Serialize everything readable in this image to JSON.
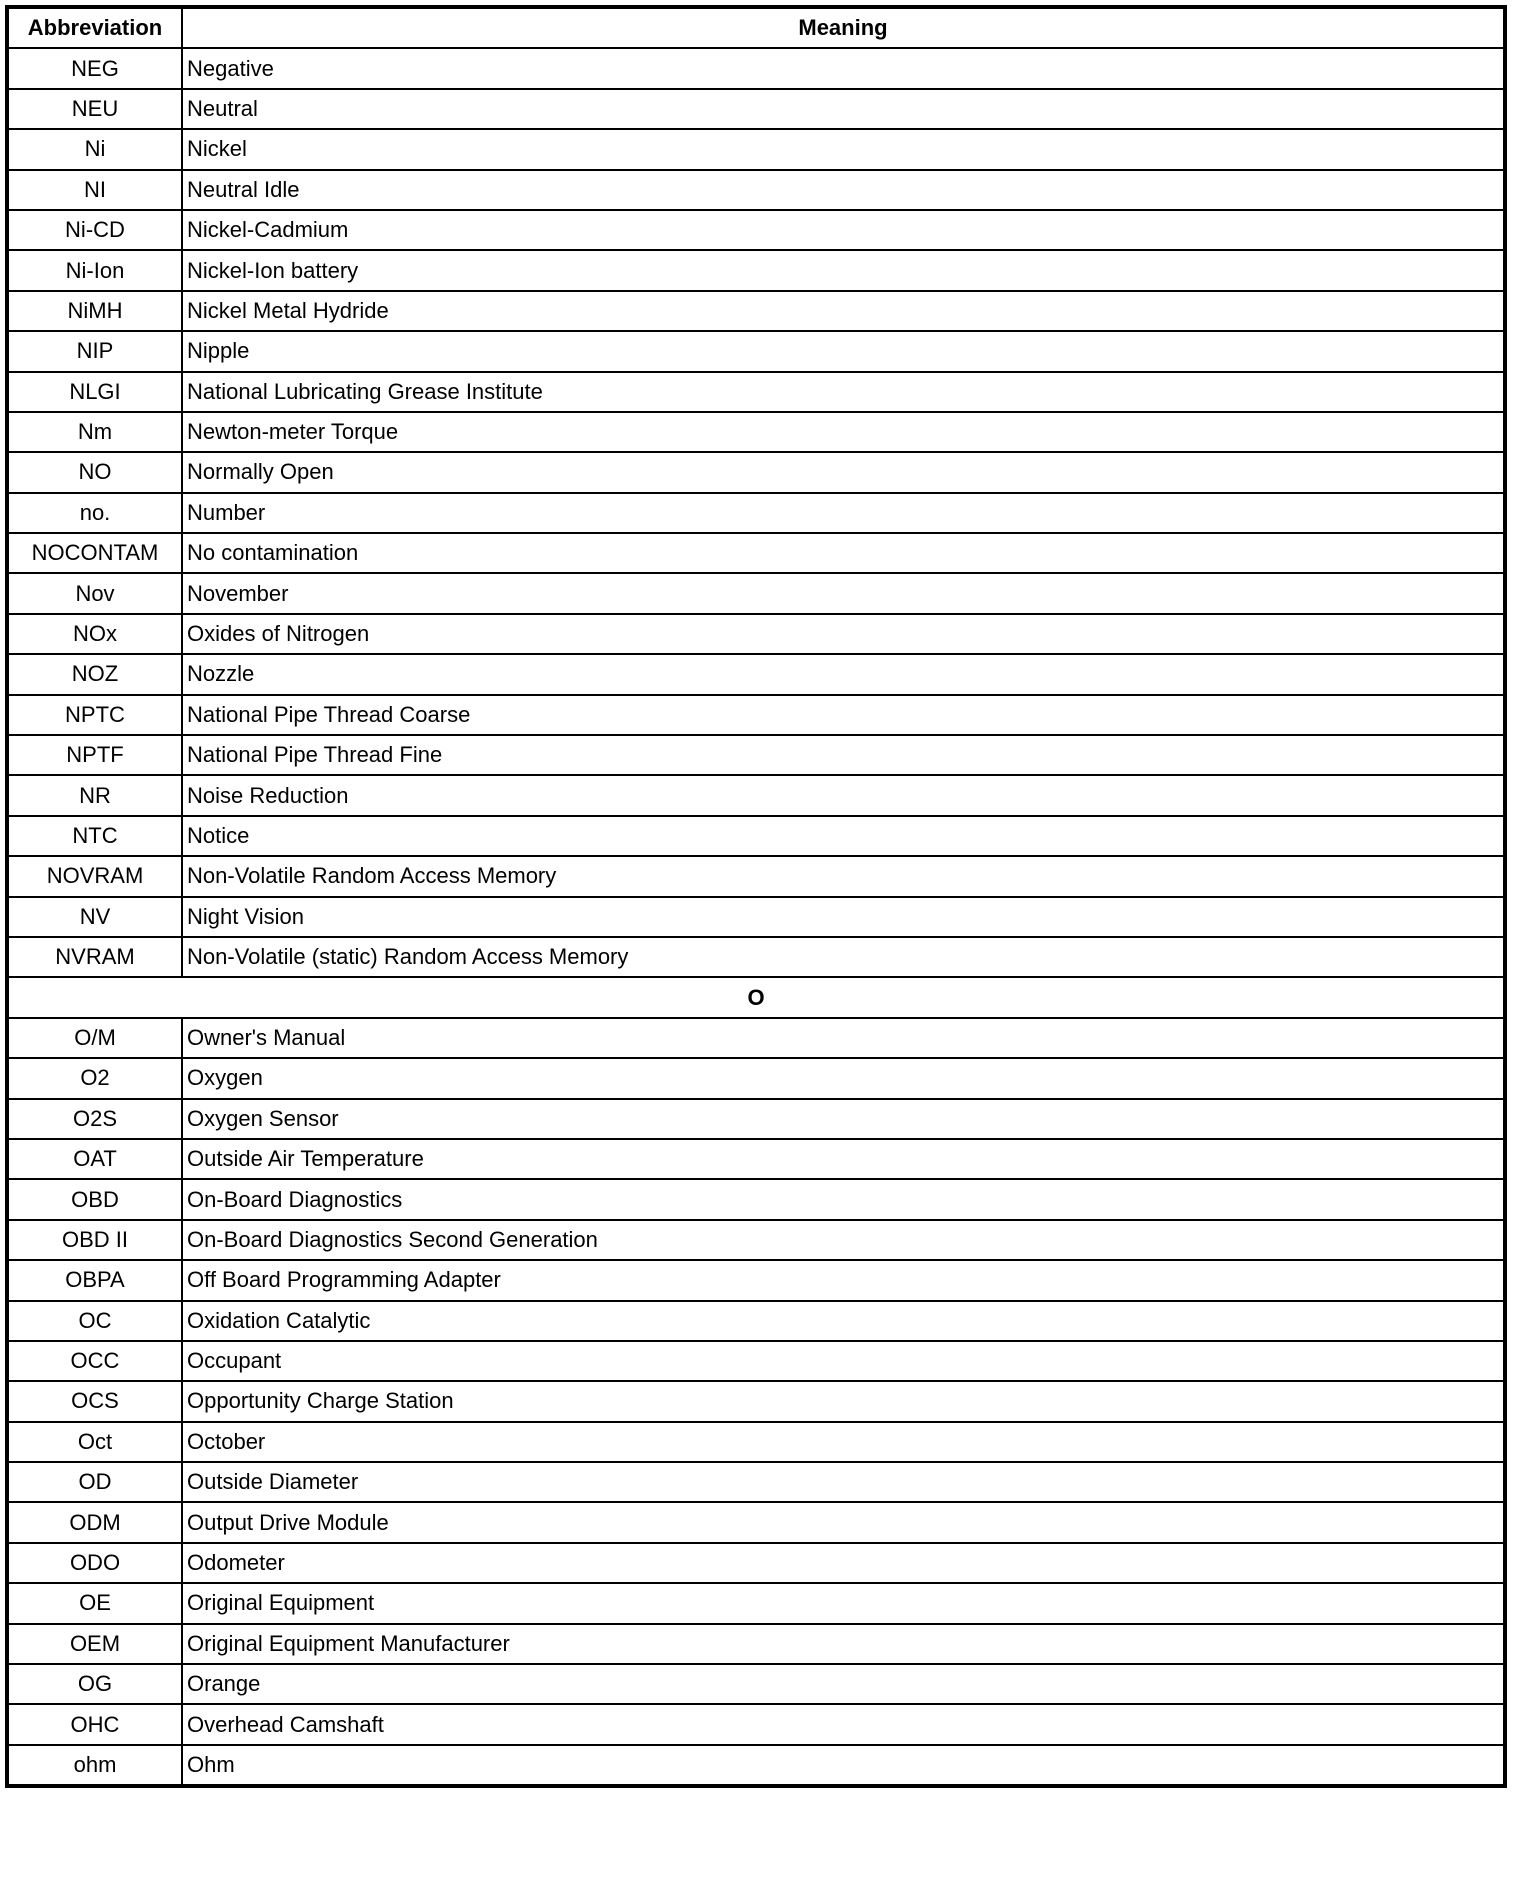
{
  "headers": {
    "abbreviation": "Abbreviation",
    "meaning": "Meaning"
  },
  "sections": [
    {
      "title": "",
      "rows": [
        [
          "NEG",
          "Negative"
        ],
        [
          "NEU",
          "Neutral"
        ],
        [
          "Ni",
          "Nickel"
        ],
        [
          "NI",
          "Neutral Idle"
        ],
        [
          "Ni-CD",
          "Nickel-Cadmium"
        ],
        [
          "Ni-Ion",
          "Nickel-Ion battery"
        ],
        [
          "NiMH",
          "Nickel Metal Hydride"
        ],
        [
          "NIP",
          "Nipple"
        ],
        [
          "NLGI",
          "National Lubricating Grease Institute"
        ],
        [
          "Nm",
          "Newton-meter Torque"
        ],
        [
          "NO",
          "Normally Open"
        ],
        [
          "no.",
          "Number"
        ],
        [
          "NOCONTAM",
          "No contamination"
        ],
        [
          "Nov",
          "November"
        ],
        [
          "NOx",
          "Oxides of Nitrogen"
        ],
        [
          "NOZ",
          "Nozzle"
        ],
        [
          "NPTC",
          "National Pipe Thread Coarse"
        ],
        [
          "NPTF",
          "National Pipe Thread Fine"
        ],
        [
          "NR",
          "Noise Reduction"
        ],
        [
          "NTC",
          "Notice"
        ],
        [
          "NOVRAM",
          "Non-Volatile Random Access Memory"
        ],
        [
          "NV",
          "Night Vision"
        ],
        [
          "NVRAM",
          "Non-Volatile (static) Random Access Memory"
        ]
      ]
    },
    {
      "title": "O",
      "rows": [
        [
          "O/M",
          "Owner's Manual"
        ],
        [
          "O2",
          "Oxygen"
        ],
        [
          "O2S",
          "Oxygen Sensor"
        ],
        [
          "OAT",
          "Outside Air Temperature"
        ],
        [
          "OBD",
          "On-Board Diagnostics"
        ],
        [
          "OBD II",
          "On-Board Diagnostics Second Generation"
        ],
        [
          "OBPA",
          "Off Board Programming Adapter"
        ],
        [
          "OC",
          "Oxidation Catalytic"
        ],
        [
          "OCC",
          "Occupant"
        ],
        [
          "OCS",
          "Opportunity Charge Station"
        ],
        [
          "Oct",
          "October"
        ],
        [
          "OD",
          "Outside Diameter"
        ],
        [
          "ODM",
          "Output Drive Module"
        ],
        [
          "ODO",
          "Odometer"
        ],
        [
          "OE",
          "Original Equipment"
        ],
        [
          "OEM",
          "Original Equipment Manufacturer"
        ],
        [
          "OG",
          "Orange"
        ],
        [
          "OHC",
          "Overhead Camshaft"
        ],
        [
          "ohm",
          "Ohm"
        ]
      ]
    }
  ]
}
